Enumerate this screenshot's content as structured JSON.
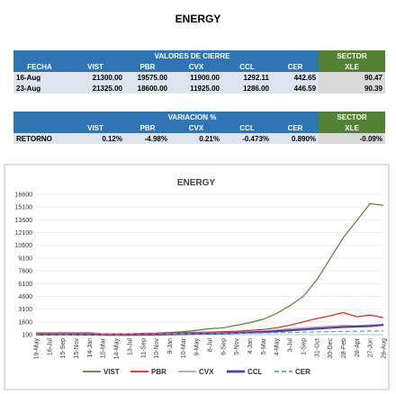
{
  "title": "ENERGY",
  "table1": {
    "group_header": "VALORES DE CIERRE",
    "sector_header": "SECTOR",
    "columns": [
      "FECHA",
      "VIST",
      "PBR",
      "CVX",
      "CCL",
      "CER",
      "XLE"
    ],
    "rows": [
      [
        "16-Aug",
        "21300.00",
        "19575.00",
        "11900.00",
        "1292.11",
        "442.65",
        "90.47"
      ],
      [
        "23-Aug",
        "21325.00",
        "18600.00",
        "11925.00",
        "1286.00",
        "446.59",
        "90.39"
      ]
    ]
  },
  "table2": {
    "group_header": "VARIACION %",
    "sector_header": "SECTOR",
    "columns": [
      "VIST",
      "PBR",
      "CVX",
      "CCL",
      "CER",
      "XLE"
    ],
    "rows": [
      [
        "RETORNO",
        "0.12%",
        "-4.98%",
        "0.21%",
        "-0.473%",
        "0.890%",
        "-0.09%"
      ]
    ]
  },
  "chart_data": {
    "type": "line",
    "title": "ENERGY",
    "categories": [
      "19-May",
      "16-Jul",
      "15-Sep",
      "15-Nov",
      "14-Jan",
      "15-Mar",
      "14-May",
      "13-Jul",
      "11-Sep",
      "10-Nov",
      "9-Jan",
      "10-Mar",
      "9-May",
      "8-Jul",
      "6-Sep",
      "5-Nov",
      "4-Jan",
      "5-Mar",
      "4-May",
      "3-Jul",
      "1-Sep",
      "31-Oct",
      "30-Dec",
      "28-Feb",
      "28-Apr",
      "27-Jun",
      "26-Aug"
    ],
    "series": [
      {
        "name": "VIST",
        "color": "#548235",
        "dash": false,
        "width": 1.2,
        "values": [
          200,
          250,
          250,
          220,
          230,
          180,
          150,
          200,
          260,
          280,
          350,
          450,
          600,
          800,
          900,
          1200,
          1500,
          1900,
          2600,
          3500,
          4600,
          6500,
          9000,
          11500,
          13500,
          15500,
          15300
        ]
      },
      {
        "name": "PBR",
        "color": "#e0201b",
        "dash": false,
        "width": 1.2,
        "values": [
          300,
          300,
          320,
          300,
          310,
          200,
          180,
          200,
          230,
          260,
          300,
          350,
          380,
          400,
          450,
          500,
          600,
          700,
          900,
          1200,
          1600,
          2000,
          2300,
          2700,
          2200,
          2400,
          2100
        ]
      },
      {
        "name": "CVX",
        "color": "#a5a5a5",
        "dash": false,
        "width": 1.2,
        "values": [
          200,
          210,
          220,
          210,
          220,
          150,
          140,
          160,
          180,
          200,
          230,
          260,
          300,
          320,
          350,
          400,
          450,
          500,
          650,
          800,
          900,
          1000,
          1100,
          1200,
          1150,
          1250,
          1250
        ]
      },
      {
        "name": "CCL",
        "color": "#5b3a96",
        "dash": false,
        "width": 2.2,
        "values": [
          100,
          110,
          120,
          110,
          120,
          80,
          80,
          90,
          100,
          110,
          140,
          170,
          200,
          220,
          250,
          300,
          350,
          420,
          500,
          600,
          700,
          800,
          900,
          1000,
          1050,
          1100,
          1250
        ]
      },
      {
        "name": "CER",
        "color": "#5b9bd5",
        "dash": true,
        "width": 1.2,
        "values": [
          100,
          105,
          110,
          115,
          120,
          130,
          140,
          150,
          160,
          170,
          180,
          190,
          200,
          220,
          240,
          260,
          280,
          300,
          330,
          360,
          390,
          420,
          450,
          480,
          500,
          520,
          540
        ]
      }
    ],
    "ylim": [
      100,
      16600
    ],
    "yticks": [
      100,
      1600,
      3100,
      4600,
      6100,
      7600,
      9100,
      10600,
      12100,
      13600,
      15100,
      16600
    ],
    "grid": true
  }
}
